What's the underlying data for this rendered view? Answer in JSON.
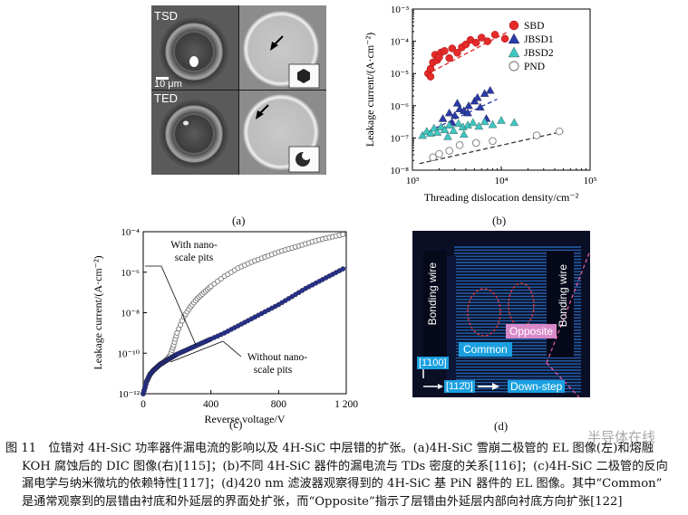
{
  "panel_a": {
    "label": "(a)",
    "tsd_label": "TSD",
    "ted_label": "TED",
    "scale_bar": "10 μm"
  },
  "panel_b": {
    "label": "(b)"
  },
  "panel_c": {
    "label": "(c)",
    "annot_with": [
      "With nano-",
      "scale pits"
    ],
    "annot_without": [
      "Without nano-",
      "scale pits"
    ]
  },
  "panel_d": {
    "label": "(d)",
    "bonding_left": "Bonding wire",
    "bonding_right": "Bonding wire",
    "opposite": "Opposite",
    "common": "Common",
    "dir_vertical": "[1̄100]",
    "dir_horizontal": "[112̄0]",
    "down_step": "Down-step",
    "colors": {
      "common_bg": "#1aa0e0",
      "opposite_bg": "#d88ac8",
      "bg": "#0a0f26",
      "stripe": "#2a6fc4"
    }
  },
  "caption": {
    "line1": "图 11　位错对 4H-SiC 功率器件漏电流的影响以及 4H-SiC 中层错的扩张。(a)4H-SiC 雪崩二极管的 EL 图像(左)和熔融",
    "line2": "KOH 腐蚀后的 DIC 图像(右)[115]；(b)不同 4H-SiC 器件的漏电流与 TDs 密度的关系[116]；(c)4H-SiC 二极管的反向",
    "line3": "漏电学与纳米微坑的依赖特性[117]；(d)420 nm 滤波器观察得到的 4H-SiC 基 PiN 器件的 EL 图像。其中“Common”",
    "line4": "是通常观察到的层错由衬底和外延层的界面处扩张，而“Opposite”指示了层错由外延层内部向衬底方向扩张[122]"
  },
  "watermark": "半导体在线",
  "chart_data": [
    {
      "type": "scatter",
      "xscale": "log",
      "yscale": "log",
      "xlabel": "Threading dislocation density/cm⁻²",
      "ylabel": "Leakage current/(A·cm⁻²)",
      "xlim": [
        1000,
        100000
      ],
      "ylim": [
        1e-08,
        0.001
      ],
      "xticks": [
        "10³",
        "10⁴",
        "10⁵"
      ],
      "yticks": [
        "10⁻⁸",
        "10⁻⁷",
        "10⁻⁶",
        "10⁻⁵",
        "10⁻⁴",
        "10⁻³"
      ],
      "series": [
        {
          "name": "SBD",
          "marker": "circle",
          "color": "#e52a2a",
          "x": [
            1500,
            1600,
            1700,
            1800,
            1900,
            2100,
            2300,
            2600,
            2800,
            3200,
            3600,
            4000,
            4500,
            5200,
            6000,
            7000,
            8500,
            11000,
            2000,
            1600
          ],
          "y": [
            1e-05,
            1.4e-05,
            2.2e-05,
            3.8e-05,
            2.6e-05,
            4.5e-05,
            5e-05,
            3e-05,
            6e-05,
            4.4e-05,
            6.5e-05,
            8e-05,
            0.00011,
            9e-05,
            0.00013,
            0.0001,
            0.00016,
            0.00012,
            3.2e-05,
            8e-06
          ],
          "fit": [
            [
              1400,
              9e-06
            ],
            [
              12000,
              0.0002
            ]
          ]
        },
        {
          "name": "JBSD1",
          "marker": "triangle",
          "color": "#2a3aa8",
          "x": [
            2200,
            2600,
            3000,
            3400,
            3800,
            4300,
            5000,
            5800,
            6500,
            7500,
            3200,
            2800,
            4200,
            5400,
            6800
          ],
          "y": [
            4e-07,
            6e-07,
            5e-07,
            8e-07,
            7e-07,
            1e-06,
            1.4e-06,
            9e-07,
            2.4e-06,
            3e-06,
            1.2e-06,
            3e-07,
            6e-07,
            1.8e-06,
            4e-07
          ],
          "fit": [
            [
              1800,
              2e-07
            ],
            [
              9000,
              1.6e-06
            ]
          ]
        },
        {
          "name": "JBSD2",
          "marker": "triangle",
          "color": "#3fc6c0",
          "x": [
            1300,
            1450,
            1600,
            1750,
            1900,
            2100,
            2300,
            2600,
            2900,
            3300,
            3700,
            4200,
            4800,
            5600,
            6500,
            8000,
            10000,
            14000,
            2500,
            3800
          ],
          "y": [
            1.2e-07,
            1.6e-07,
            1.4e-07,
            2e-07,
            1.5e-07,
            2.2e-07,
            1.8e-07,
            2.5e-07,
            1.7e-07,
            2.8e-07,
            2.2e-07,
            2.5e-07,
            3e-07,
            2.3e-07,
            3.2e-07,
            2.6e-07,
            3.5e-07,
            3e-07,
            1.1e-07,
            1.3e-07
          ]
        },
        {
          "name": "PND",
          "marker": "circle-open",
          "color": "#888888",
          "x": [
            1700,
            2000,
            2600,
            3400,
            5200,
            8000,
            25000,
            45000
          ],
          "y": [
            2.5e-08,
            3.2e-08,
            4e-08,
            6e-08,
            7e-08,
            8e-08,
            1.2e-07,
            1.6e-07
          ],
          "fit": [
            [
              1200,
              1.6e-08
            ],
            [
              50000,
              1.6e-07
            ]
          ]
        }
      ]
    },
    {
      "type": "line",
      "yscale": "log",
      "xlabel": "Reverse voltage/V",
      "ylabel": "Leakage current/(A·cm⁻²)",
      "xlim": [
        0,
        1200
      ],
      "ylim": [
        1e-12,
        0.0001
      ],
      "xticks": [
        "0",
        "400",
        "800",
        "1 200"
      ],
      "yticks": [
        "10⁻¹²",
        "10⁻¹⁰",
        "10⁻⁸",
        "10⁻⁶",
        "10⁻⁴"
      ],
      "series": [
        {
          "name": "With nano-scale pits",
          "marker": "circle-open",
          "color": "#777777",
          "x": [
            0,
            20,
            40,
            60,
            80,
            100,
            120,
            140,
            160,
            180,
            200,
            240,
            280,
            320,
            360,
            400,
            480,
            560,
            640,
            720,
            800,
            880,
            960,
            1040,
            1120,
            1200
          ],
          "logy": [
            -12,
            -11.4,
            -11.05,
            -10.85,
            -10.7,
            -10.55,
            -10.45,
            -10.3,
            -10.1,
            -9.6,
            -9.0,
            -8.2,
            -7.7,
            -7.3,
            -7.0,
            -6.7,
            -6.2,
            -5.8,
            -5.5,
            -5.25,
            -5.0,
            -4.8,
            -4.6,
            -4.4,
            -4.25,
            -4.1
          ]
        },
        {
          "name": "Without nano-scale pits",
          "marker": "circle-filled",
          "color": "#27308c",
          "x": [
            0,
            20,
            40,
            60,
            80,
            100,
            120,
            140,
            160,
            180,
            200,
            240,
            280,
            320,
            360,
            400,
            480,
            560,
            640,
            720,
            800,
            880,
            960,
            1040,
            1120,
            1200
          ],
          "logy": [
            -12,
            -11.4,
            -11.05,
            -10.85,
            -10.7,
            -10.55,
            -10.45,
            -10.35,
            -10.25,
            -10.15,
            -10.05,
            -9.9,
            -9.75,
            -9.6,
            -9.45,
            -9.3,
            -9.0,
            -8.65,
            -8.3,
            -7.95,
            -7.6,
            -7.2,
            -6.8,
            -6.45,
            -6.1,
            -5.75
          ]
        }
      ]
    }
  ]
}
